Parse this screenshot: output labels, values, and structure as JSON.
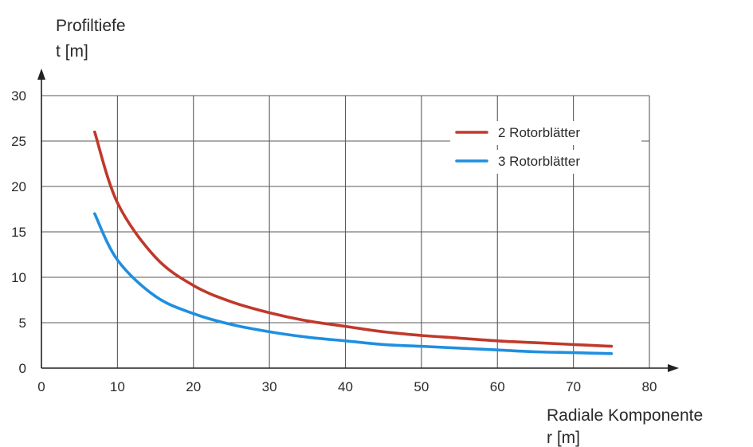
{
  "chart_data": {
    "type": "line",
    "ylabel": [
      "Profiltiefe",
      "t [m]"
    ],
    "xlabel": [
      "Radiale Komponente",
      "r [m]"
    ],
    "xlim": [
      0,
      80
    ],
    "ylim": [
      0,
      30
    ],
    "x_ticks": [
      "0",
      "10",
      "20",
      "30",
      "40",
      "50",
      "60",
      "70",
      "80"
    ],
    "y_ticks": [
      "0",
      "5",
      "10",
      "15",
      "20",
      "25",
      "30"
    ],
    "grid": true,
    "legend_position": "top-right",
    "x": [
      7,
      10,
      15,
      20,
      25,
      30,
      35,
      40,
      45,
      50,
      55,
      60,
      65,
      70,
      75
    ],
    "series": [
      {
        "name": "2 Rotorblätter",
        "color": "#c0392b",
        "values": [
          26.0,
          18.2,
          12.2,
          9.1,
          7.3,
          6.1,
          5.2,
          4.6,
          4.0,
          3.6,
          3.3,
          3.0,
          2.8,
          2.6,
          2.4
        ]
      },
      {
        "name": "3 Rotorblätter",
        "color": "#1f8fe0",
        "values": [
          17.0,
          11.9,
          7.9,
          6.0,
          4.8,
          4.0,
          3.4,
          3.0,
          2.6,
          2.4,
          2.2,
          2.0,
          1.8,
          1.7,
          1.6
        ]
      }
    ]
  }
}
